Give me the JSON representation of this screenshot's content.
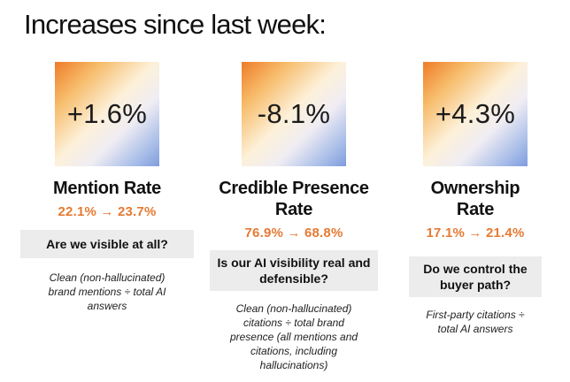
{
  "title": "Increases since last week:",
  "metrics": [
    {
      "delta": "+1.6%",
      "name": "Mention Rate",
      "change": "22.1% → 23.7%",
      "question": "Are we visible at all?",
      "definition": "Clean (non-hallucinated) brand mentions ÷ total AI answers"
    },
    {
      "delta": "-8.1%",
      "name": "Credible Presence Rate",
      "change": "76.9% → 68.8%",
      "question": "Is our AI visibility real and defensible?",
      "definition": "Clean (non-hallucinated) citations ÷ total brand presence (all mentions and citations, including hallucinations)"
    },
    {
      "delta": "+4.3%",
      "name": "Ownership Rate",
      "change": "17.1% → 21.4%",
      "question": "Do we control the buyer path?",
      "definition": "First-party citations ÷ total AI answers"
    }
  ]
}
